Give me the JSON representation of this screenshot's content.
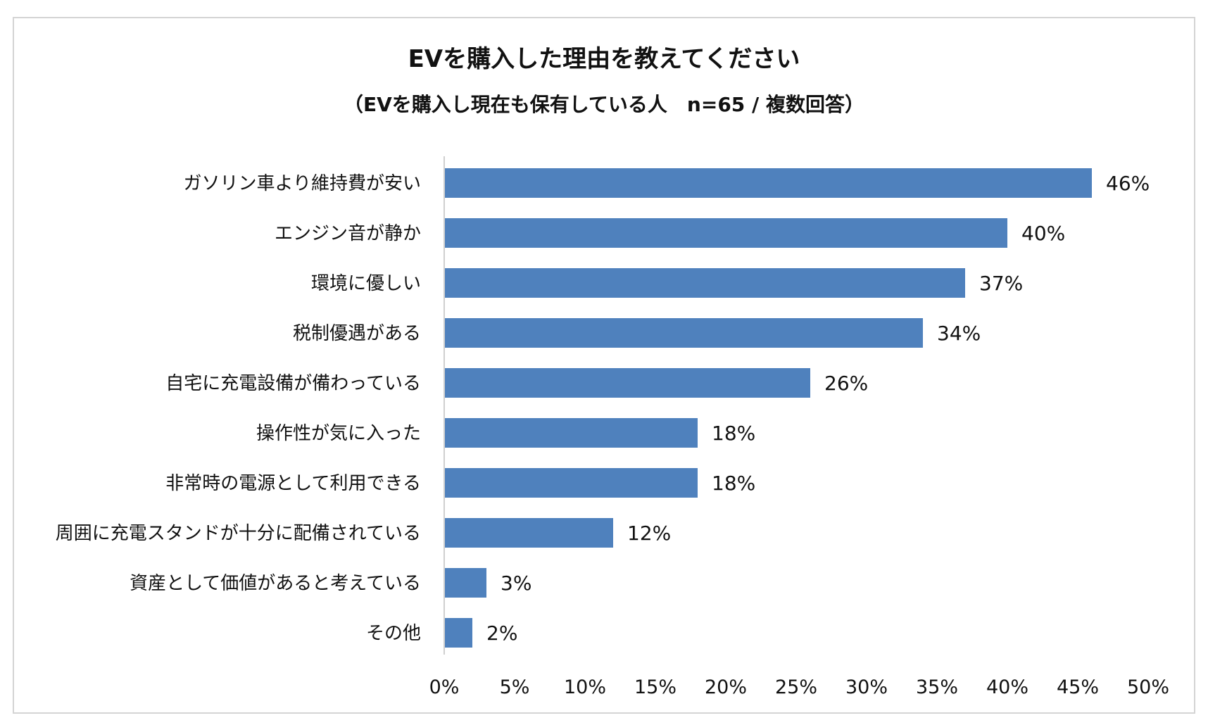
{
  "chart_data": {
    "type": "bar",
    "orientation": "horizontal",
    "title": "EVを購入した理由を教えてください",
    "subtitle": "（EVを購入し現在も保有している人　n=65 / 複数回答）",
    "categories": [
      "ガソリン車より維持費が安い",
      "エンジン音が静か",
      "環境に優しい",
      "税制優遇がある",
      "自宅に充電設備が備わっている",
      "操作性が気に入った",
      "非常時の電源として利用できる",
      "周囲に充電スタンドが十分に配備されている",
      "資産として価値があると考えている",
      "その他"
    ],
    "values": [
      46,
      40,
      37,
      34,
      26,
      18,
      18,
      12,
      3,
      2
    ],
    "value_labels": [
      "46%",
      "40%",
      "37%",
      "34%",
      "26%",
      "18%",
      "18%",
      "12%",
      "3%",
      "2%"
    ],
    "xlim": [
      0,
      50
    ],
    "xticks": [
      0,
      5,
      10,
      15,
      20,
      25,
      30,
      35,
      40,
      45,
      50
    ],
    "xtick_labels": [
      "0%",
      "5%",
      "10%",
      "15%",
      "20%",
      "25%",
      "30%",
      "35%",
      "40%",
      "45%",
      "50%"
    ],
    "xlabel": "",
    "ylabel": "",
    "bar_color": "#4f81bd",
    "axis_color": "#d0d0d0",
    "grid": false,
    "legend": "none"
  }
}
